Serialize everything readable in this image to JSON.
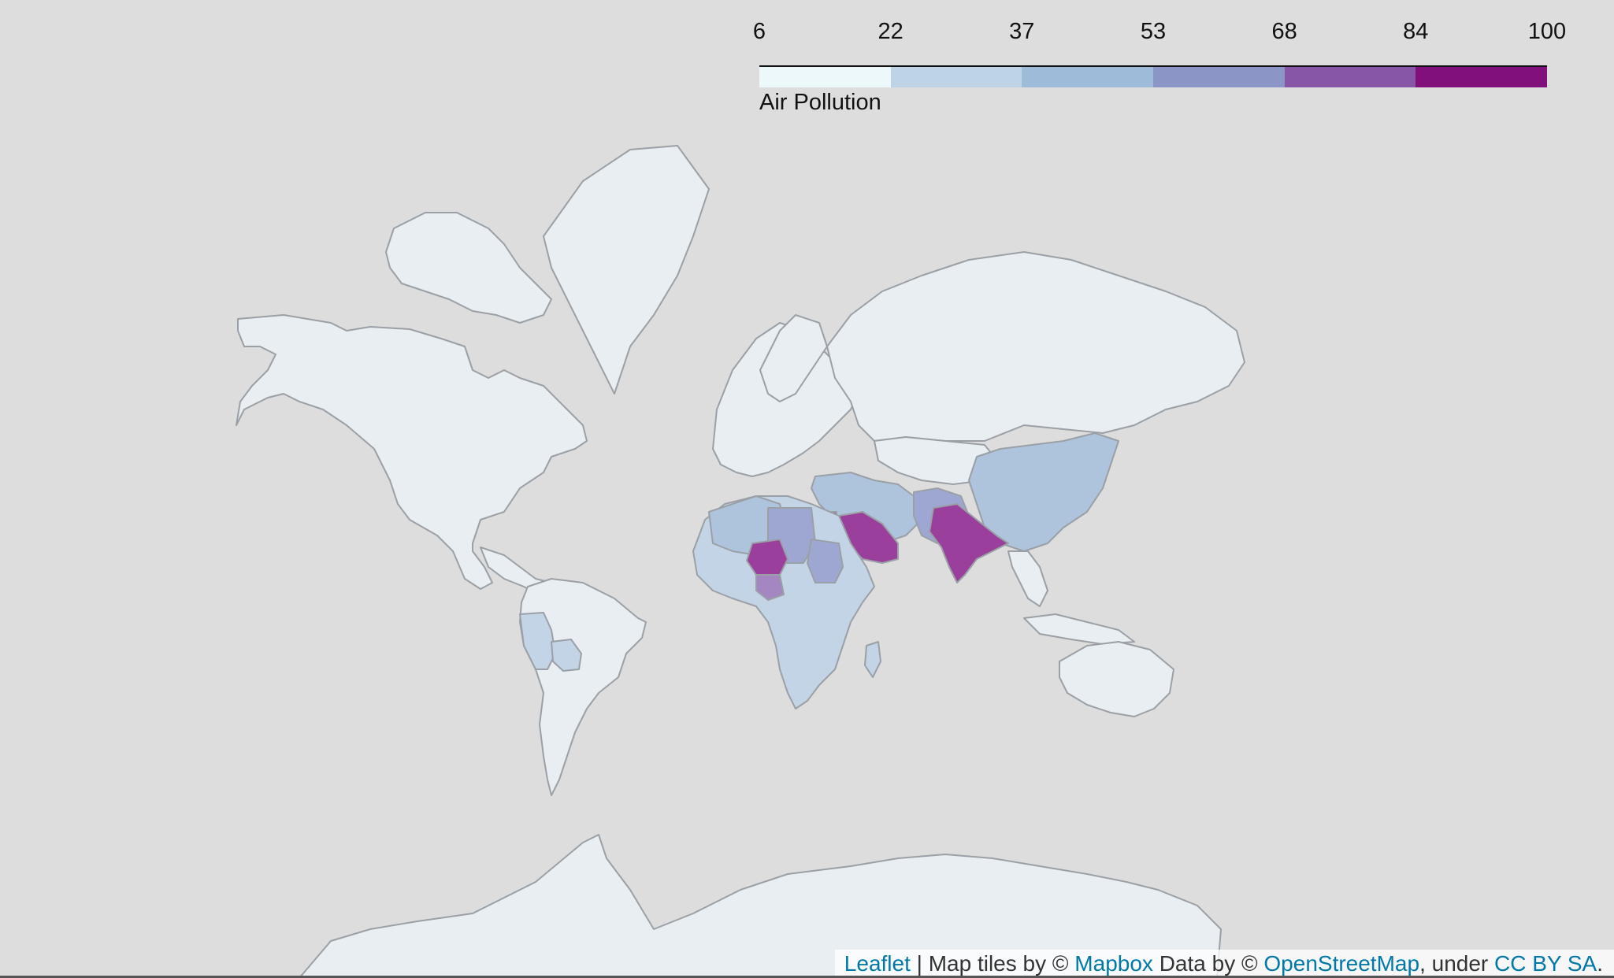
{
  "legend": {
    "title": "Air Pollution",
    "ticks": [
      "6",
      "22",
      "37",
      "53",
      "68",
      "84",
      "100"
    ],
    "bins": [
      {
        "range": [
          6,
          22
        ],
        "color": "#edf8fb"
      },
      {
        "range": [
          22,
          37
        ],
        "color": "#bfd3e6"
      },
      {
        "range": [
          37,
          53
        ],
        "color": "#9ebcda"
      },
      {
        "range": [
          53,
          68
        ],
        "color": "#8c96c6"
      },
      {
        "range": [
          68,
          84
        ],
        "color": "#8856a7"
      },
      {
        "range": [
          84,
          100
        ],
        "color": "#810f7c"
      }
    ]
  },
  "map": {
    "background_color": "#dddddd",
    "land_default_color": "#e8eef1",
    "border_color": "#9aa0a6",
    "region_colors": {
      "high": "#9b3f9c",
      "upper_mid": "#a486c0",
      "mid": "#9ea7d2",
      "low_mid": "#aec3dc",
      "low": "#c2d4e6"
    }
  },
  "attribution": {
    "leaflet": "Leaflet",
    "sep1": " | Map tiles by © ",
    "mapbox": "Mapbox",
    "sep2": " Data by © ",
    "osm": "OpenStreetMap",
    "sep3": ", under ",
    "license": "CC BY SA",
    "end": "."
  }
}
